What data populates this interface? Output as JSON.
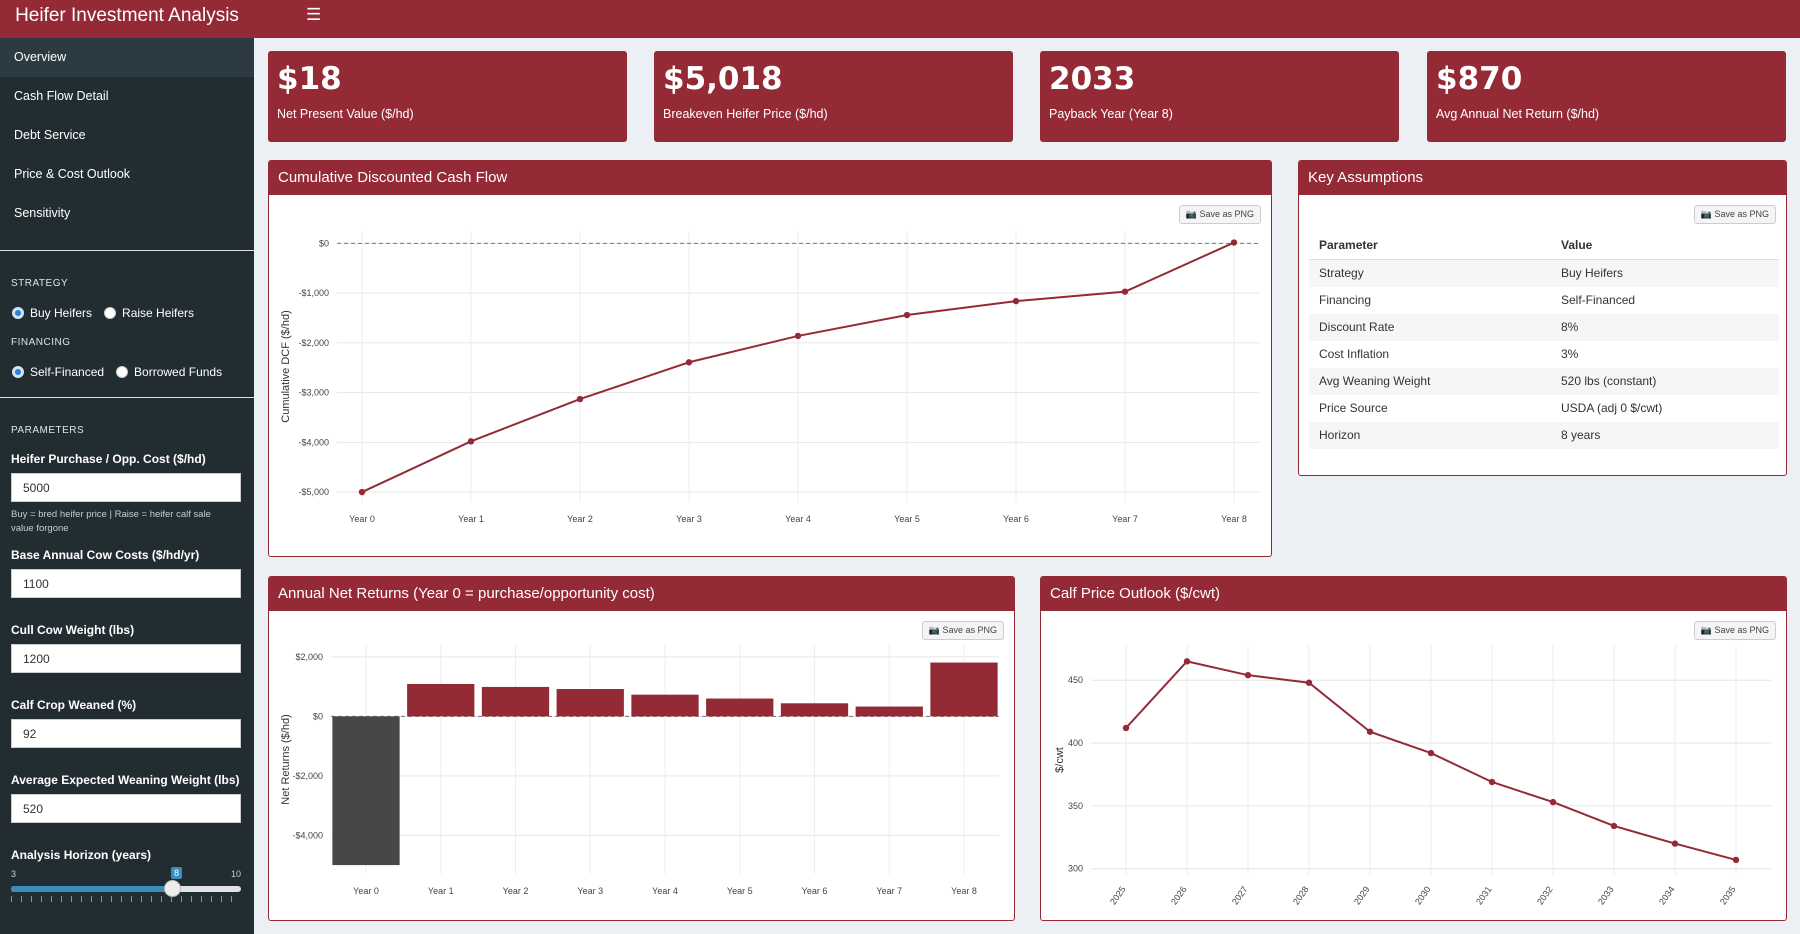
{
  "app": {
    "title": "Heifer Investment Analysis",
    "menu_icon": "hamburger-icon"
  },
  "nav": [
    {
      "label": "Overview",
      "active": true
    },
    {
      "label": "Cash Flow Detail"
    },
    {
      "label": "Debt Service"
    },
    {
      "label": "Price & Cost Outlook"
    },
    {
      "label": "Sensitivity"
    }
  ],
  "strategy": {
    "title": "STRATEGY",
    "options": [
      "Buy Heifers",
      "Raise Heifers"
    ],
    "selected": "Buy Heifers"
  },
  "financing": {
    "title": "FINANCING",
    "options": [
      "Self-Financed",
      "Borrowed Funds"
    ],
    "selected": "Self-Financed"
  },
  "parameters": {
    "title": "PARAMETERS",
    "heifer_cost": {
      "label": "Heifer Purchase / Opp. Cost ($/hd)",
      "value": "5000",
      "help": "Buy = bred heifer price | Raise = heifer calf sale value forgone"
    },
    "cow_costs": {
      "label": "Base Annual Cow Costs ($/hd/yr)",
      "value": "1100"
    },
    "cull_weight": {
      "label": "Cull Cow Weight (lbs)",
      "value": "1200"
    },
    "calf_crop": {
      "label": "Calf Crop Weaned (%)",
      "value": "92"
    },
    "weaning_weight": {
      "label": "Average Expected Weaning Weight (lbs)",
      "value": "520"
    },
    "horizon": {
      "label": "Analysis Horizon (years)",
      "min": "3",
      "max": "10",
      "value": "8",
      "fraction": 0.714
    }
  },
  "kpis": [
    {
      "value": "$18",
      "label": "Net Present Value ($/hd)"
    },
    {
      "value": "$5,018",
      "label": "Breakeven Heifer Price ($/hd)"
    },
    {
      "value": "2033",
      "label": "Payback Year (Year 8)"
    },
    {
      "value": "$870",
      "label": "Avg Annual Net Return ($/hd)"
    }
  ],
  "save_label": "📷 Save as PNG",
  "assumptions": {
    "title": "Key Assumptions",
    "headers": [
      "Parameter",
      "Value"
    ],
    "rows": [
      [
        "Strategy",
        "Buy Heifers"
      ],
      [
        "Financing",
        "Self-Financed"
      ],
      [
        "Discount Rate",
        "8%"
      ],
      [
        "Cost Inflation",
        "3%"
      ],
      [
        "Avg Weaning Weight",
        "520 lbs (constant)"
      ],
      [
        "Price Source",
        "USDA (adj 0 $/cwt)"
      ],
      [
        "Horizon",
        "8 years"
      ]
    ]
  },
  "colors": {
    "accent": "#942a36",
    "year0_bar": "#474747",
    "sidebar": "#222d32"
  },
  "chart_data": [
    {
      "type": "line",
      "title": "Cumulative Discounted Cash Flow",
      "ylabel": "Cumulative DCF ($/hd)",
      "categories": [
        "Year 0",
        "Year 1",
        "Year 2",
        "Year 3",
        "Year 4",
        "Year 5",
        "Year 6",
        "Year 7",
        "Year 8"
      ],
      "values": [
        -5000,
        -3980,
        -3130,
        -2390,
        -1860,
        -1440,
        -1160,
        -970,
        18
      ],
      "ylim": [
        -5200,
        250
      ],
      "yticks": [
        0,
        -1000,
        -2000,
        -3000,
        -4000,
        -5000
      ],
      "ytick_labels": [
        "$0",
        "-$1,000",
        "-$2,000",
        "-$3,000",
        "-$4,000",
        "-$5,000"
      ],
      "reference_line": 0
    },
    {
      "type": "bar",
      "title": "Annual Net Returns (Year 0 = purchase/opportunity cost)",
      "ylabel": "Net Returns ($/hd)",
      "categories": [
        "Year 0",
        "Year 1",
        "Year 2",
        "Year 3",
        "Year 4",
        "Year 5",
        "Year 6",
        "Year 7",
        "Year 8"
      ],
      "values": [
        -5000,
        1090,
        990,
        920,
        730,
        600,
        440,
        330,
        1810
      ],
      "ylim": [
        -5300,
        2400
      ],
      "yticks": [
        2000,
        0,
        -2000,
        -4000
      ],
      "ytick_labels": [
        "$2,000",
        "$0",
        "-$2,000",
        "-$4,000"
      ],
      "reference_line": 0
    },
    {
      "type": "line",
      "title": "Calf Price Outlook ($/cwt)",
      "ylabel": "$/cwt",
      "categories": [
        "2025",
        "2026",
        "2027",
        "2028",
        "2029",
        "2030",
        "2031",
        "2032",
        "2033",
        "2034",
        "2035"
      ],
      "values": [
        412,
        465,
        454,
        448,
        409,
        392,
        369,
        353,
        334,
        320,
        307
      ],
      "ylim": [
        295,
        478
      ],
      "yticks": [
        450,
        400,
        350,
        300
      ],
      "ytick_labels": [
        "450",
        "400",
        "350",
        "300"
      ]
    }
  ]
}
